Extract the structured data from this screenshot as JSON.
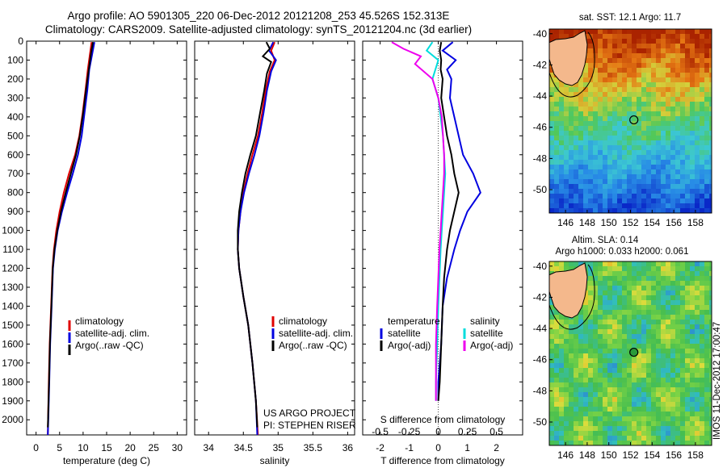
{
  "header": {
    "title_line1": "Argo profile: AO 5901305_220 06-Dec-2012 20121208_253 45.526S 152.313E",
    "title_line2": "Climatology: CARS2009. Satellite-adjusted climatology: synTS_20121204.nc (3d earlier)"
  },
  "side_label": "IMOS 11-Dec-2012 17:00:47",
  "colors": {
    "climatology": "#e00000",
    "satellite": "#0000e0",
    "argo": "#000000",
    "sal_satellite": "#00dddd",
    "sal_argo": "#ee00ee"
  },
  "chart_data": [
    {
      "type": "line",
      "id": "temperature",
      "xlabel": "temperature (deg C)",
      "ylabel": "",
      "xlim": [
        -2,
        32
      ],
      "xticks": [
        0,
        5,
        10,
        15,
        20,
        25,
        30
      ],
      "ylim": [
        2080,
        0
      ],
      "yticks": [
        0,
        100,
        200,
        300,
        400,
        500,
        600,
        700,
        800,
        900,
        1000,
        1100,
        1200,
        1300,
        1400,
        1500,
        1600,
        1700,
        1800,
        1900,
        2000
      ],
      "legend": [
        "climatology",
        "satellite-adj. clim.",
        "Argo(..raw -QC)"
      ],
      "legend_position": "lower-right",
      "series": [
        {
          "name": "climatology",
          "color": "#e00000",
          "points": [
            [
              11.8,
              5
            ],
            [
              11.5,
              60
            ],
            [
              11.0,
              150
            ],
            [
              10.5,
              260
            ],
            [
              9.9,
              380
            ],
            [
              9.2,
              500
            ],
            [
              8.3,
              600
            ],
            [
              7.0,
              700
            ],
            [
              5.9,
              800
            ],
            [
              5.0,
              900
            ],
            [
              4.3,
              1000
            ],
            [
              3.8,
              1100
            ],
            [
              3.5,
              1200
            ],
            [
              3.2,
              1400
            ],
            [
              2.9,
              1600
            ],
            [
              2.7,
              1800
            ],
            [
              2.55,
              2000
            ],
            [
              2.5,
              2080
            ]
          ]
        },
        {
          "name": "satellite-adj. clim.",
          "color": "#0000e0",
          "points": [
            [
              12.4,
              5
            ],
            [
              12.0,
              60
            ],
            [
              11.3,
              150
            ],
            [
              10.9,
              260
            ],
            [
              10.3,
              380
            ],
            [
              9.7,
              500
            ],
            [
              8.9,
              600
            ],
            [
              7.8,
              700
            ],
            [
              6.6,
              800
            ],
            [
              5.5,
              900
            ],
            [
              4.6,
              1000
            ],
            [
              4.0,
              1100
            ],
            [
              3.6,
              1200
            ],
            [
              3.3,
              1400
            ],
            [
              3.0,
              1600
            ],
            [
              2.8,
              1800
            ],
            [
              2.6,
              2000
            ],
            [
              2.5,
              2080
            ]
          ]
        },
        {
          "name": "Argo(..raw -QC)",
          "color": "#000000",
          "points": [
            [
              12.1,
              5
            ],
            [
              11.7,
              60
            ],
            [
              11.2,
              150
            ],
            [
              10.6,
              260
            ],
            [
              10.0,
              380
            ],
            [
              9.3,
              500
            ],
            [
              8.5,
              600
            ],
            [
              7.4,
              700
            ],
            [
              6.3,
              800
            ],
            [
              5.3,
              900
            ],
            [
              4.5,
              1000
            ],
            [
              3.9,
              1100
            ],
            [
              3.55,
              1200
            ],
            [
              3.25,
              1400
            ],
            [
              2.95,
              1600
            ],
            [
              2.75,
              1800
            ],
            [
              2.55,
              2000
            ],
            [
              2.5,
              2040
            ]
          ]
        }
      ]
    },
    {
      "type": "line",
      "id": "salinity",
      "xlabel": "salinity",
      "ylabel": "",
      "xlim": [
        33.8,
        36.1
      ],
      "xticks": [
        34,
        34.5,
        35,
        35.5,
        36
      ],
      "ylim": [
        2080,
        0
      ],
      "legend": [
        "climatology",
        "satellite-adj. clim.",
        "Argo(..raw -QC)"
      ],
      "legend_position": "lower-right",
      "annotation": [
        "US ARGO PROJECT",
        "PI: STEPHEN RISER"
      ],
      "series": [
        {
          "name": "climatology",
          "color": "#e00000",
          "points": [
            [
              34.95,
              5
            ],
            [
              34.9,
              50
            ],
            [
              34.95,
              100
            ],
            [
              34.88,
              160
            ],
            [
              34.82,
              260
            ],
            [
              34.77,
              380
            ],
            [
              34.71,
              500
            ],
            [
              34.63,
              600
            ],
            [
              34.56,
              700
            ],
            [
              34.5,
              800
            ],
            [
              34.46,
              900
            ],
            [
              34.43,
              1000
            ],
            [
              34.42,
              1100
            ],
            [
              34.44,
              1200
            ],
            [
              34.5,
              1350
            ],
            [
              34.57,
              1500
            ],
            [
              34.63,
              1700
            ],
            [
              34.68,
              1900
            ],
            [
              34.71,
              2080
            ]
          ]
        },
        {
          "name": "satellite-adj. clim.",
          "color": "#0000e0",
          "points": [
            [
              34.93,
              5
            ],
            [
              34.87,
              50
            ],
            [
              34.97,
              100
            ],
            [
              34.9,
              160
            ],
            [
              34.84,
              260
            ],
            [
              34.79,
              380
            ],
            [
              34.73,
              500
            ],
            [
              34.66,
              600
            ],
            [
              34.58,
              700
            ],
            [
              34.51,
              800
            ],
            [
              34.46,
              900
            ],
            [
              34.43,
              1000
            ],
            [
              34.42,
              1100
            ],
            [
              34.44,
              1200
            ],
            [
              34.5,
              1350
            ],
            [
              34.57,
              1500
            ],
            [
              34.63,
              1700
            ],
            [
              34.68,
              1900
            ],
            [
              34.7,
              2080
            ]
          ]
        },
        {
          "name": "Argo(..raw -QC)",
          "color": "#000000",
          "points": [
            [
              34.83,
              5
            ],
            [
              34.88,
              40
            ],
            [
              34.78,
              80
            ],
            [
              34.9,
              110
            ],
            [
              34.84,
              170
            ],
            [
              34.8,
              260
            ],
            [
              34.74,
              380
            ],
            [
              34.68,
              500
            ],
            [
              34.6,
              600
            ],
            [
              34.53,
              700
            ],
            [
              34.48,
              800
            ],
            [
              34.44,
              900
            ],
            [
              34.42,
              1000
            ],
            [
              34.42,
              1100
            ],
            [
              34.44,
              1200
            ],
            [
              34.5,
              1350
            ],
            [
              34.57,
              1500
            ],
            [
              34.63,
              1700
            ],
            [
              34.68,
              1900
            ],
            [
              34.7,
              2040
            ]
          ]
        }
      ]
    },
    {
      "type": "line",
      "id": "difference",
      "xlabel": "T difference from climatology",
      "top_xlabel": "S difference from climatology",
      "xlim": [
        -2.6,
        2.9
      ],
      "xticks": [
        -2,
        -1,
        0,
        1,
        2
      ],
      "top_xticks": [
        -0.5,
        -0.25,
        0,
        0.25,
        0.5
      ],
      "top_xtick_labels": [
        "-0.5",
        "-0.25",
        "0",
        "0.25",
        "0.5"
      ],
      "ylim": [
        2080,
        0
      ],
      "legend_temperature_title": "temperature",
      "legend_salinity_title": "salinity",
      "legend": [
        "satellite",
        "Argo(-adj)",
        "satellite",
        "Argo(-adj)"
      ],
      "legend_position": "lower-right",
      "series": [
        {
          "name": "satellite",
          "group": "temperature",
          "color": "#0000e0",
          "points": [
            [
              0.5,
              5
            ],
            [
              0.15,
              50
            ],
            [
              0.6,
              100
            ],
            [
              0.3,
              150
            ],
            [
              0.45,
              200
            ],
            [
              0.4,
              300
            ],
            [
              0.55,
              400
            ],
            [
              0.7,
              500
            ],
            [
              0.85,
              600
            ],
            [
              1.2,
              700
            ],
            [
              1.45,
              800
            ],
            [
              1.0,
              900
            ],
            [
              0.75,
              1000
            ],
            [
              0.55,
              1100
            ],
            [
              0.3,
              1250
            ],
            [
              0.15,
              1400
            ],
            [
              0.1,
              1600
            ],
            [
              0.0,
              1800
            ],
            [
              0.0,
              1900
            ]
          ]
        },
        {
          "name": "Argo(-adj)",
          "group": "temperature",
          "color": "#000000",
          "points": [
            [
              0.1,
              5
            ],
            [
              0.05,
              50
            ],
            [
              0.1,
              100
            ],
            [
              0.08,
              150
            ],
            [
              0.15,
              200
            ],
            [
              0.1,
              300
            ],
            [
              0.2,
              400
            ],
            [
              0.3,
              500
            ],
            [
              0.45,
              600
            ],
            [
              0.55,
              700
            ],
            [
              0.7,
              800
            ],
            [
              0.55,
              900
            ],
            [
              0.4,
              1000
            ],
            [
              0.3,
              1100
            ],
            [
              0.2,
              1250
            ],
            [
              0.15,
              1400
            ],
            [
              0.1,
              1600
            ],
            [
              0.05,
              1800
            ],
            [
              0.0,
              1900
            ]
          ]
        },
        {
          "name": "satellite",
          "group": "salinity",
          "color": "#00dddd",
          "points": [
            [
              -0.05,
              5
            ],
            [
              -0.1,
              50
            ],
            [
              0.0,
              100
            ],
            [
              -0.05,
              200
            ],
            [
              0.0,
              300
            ],
            [
              0.02,
              400
            ],
            [
              0.04,
              500
            ],
            [
              0.05,
              600
            ],
            [
              0.06,
              700
            ],
            [
              0.05,
              800
            ],
            [
              0.04,
              900
            ],
            [
              0.03,
              1000
            ],
            [
              0.02,
              1100
            ],
            [
              0.01,
              1250
            ],
            [
              0.0,
              1400
            ],
            [
              -0.01,
              1600
            ],
            [
              -0.02,
              1800
            ],
            [
              -0.02,
              1900
            ]
          ]
        },
        {
          "name": "Argo(-adj)",
          "group": "salinity",
          "color": "#ee00ee",
          "points": [
            [
              -0.4,
              5
            ],
            [
              -0.3,
              40
            ],
            [
              -0.15,
              80
            ],
            [
              -0.2,
              120
            ],
            [
              -0.05,
              200
            ],
            [
              0.0,
              300
            ],
            [
              0.03,
              400
            ],
            [
              0.04,
              500
            ],
            [
              0.05,
              600
            ],
            [
              0.05,
              700
            ],
            [
              0.04,
              800
            ],
            [
              0.03,
              900
            ],
            [
              0.02,
              1000
            ],
            [
              0.01,
              1100
            ],
            [
              0.0,
              1250
            ],
            [
              -0.01,
              1400
            ],
            [
              -0.02,
              1600
            ],
            [
              -0.02,
              1800
            ],
            [
              -0.02,
              1900
            ]
          ]
        }
      ]
    },
    {
      "type": "heatmap",
      "id": "sst_map",
      "title": "sat. SST: 12.1  Argo: 11.7",
      "xlim": [
        144.5,
        159.5
      ],
      "ylim": [
        -51.5,
        -39.7
      ],
      "xticks": [
        146,
        148,
        150,
        152,
        154,
        156,
        158
      ],
      "yticks": [
        -40,
        -42,
        -44,
        -46,
        -48,
        -50
      ],
      "float_position": [
        152.313,
        -45.526
      ]
    },
    {
      "type": "heatmap",
      "id": "sla_map",
      "title_line1": "Altim. SLA: 0.14",
      "title_line2": "Argo h1000: 0.033 h2000: 0.061",
      "xlim": [
        144.5,
        159.5
      ],
      "ylim": [
        -51.5,
        -39.7
      ],
      "xticks": [
        146,
        148,
        150,
        152,
        154,
        156,
        158
      ],
      "yticks": [
        -40,
        -42,
        -44,
        -46,
        -48,
        -50
      ],
      "float_position": [
        152.313,
        -45.526
      ]
    }
  ]
}
